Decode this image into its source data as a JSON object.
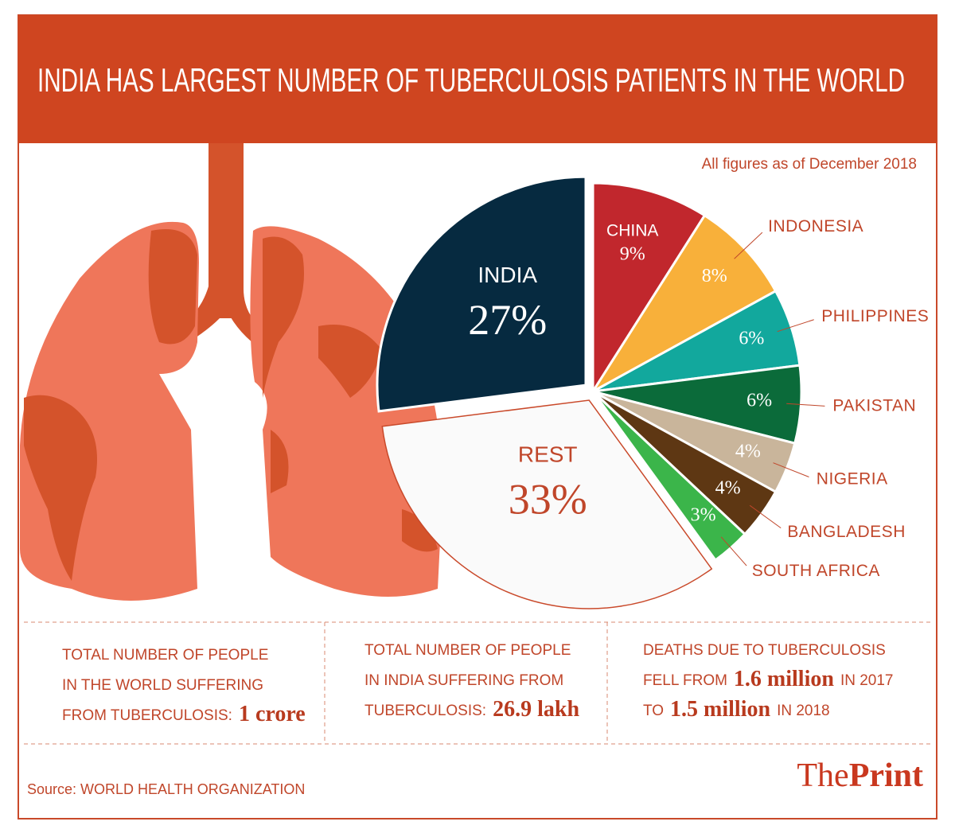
{
  "chart_data": {
    "type": "pie",
    "title": "INDIA HAS LARGEST NUMBER OF TUBERCULOSIS PATIENTS IN THE WORLD",
    "subtitle": "All figures as of December 2018",
    "categories": [
      "CHINA",
      "INDONESIA",
      "PHILIPPINES",
      "PAKISTAN",
      "NIGERIA",
      "BANGLADESH",
      "SOUTH AFRICA",
      "REST",
      "INDIA"
    ],
    "values": [
      9,
      8,
      6,
      6,
      4,
      4,
      3,
      33,
      27
    ],
    "value_labels": [
      "9%",
      "8%",
      "6%",
      "6%",
      "4%",
      "4%",
      "3%",
      "33%",
      "27%"
    ],
    "colors": [
      "#c1272d",
      "#f8b03a",
      "#12a89d",
      "#0b6b3a",
      "#c9b59b",
      "#5e3713",
      "#3bb54a",
      "#fafafa",
      "#062a40"
    ]
  },
  "stats": [
    {
      "lines": [
        [
          {
            "text": "TOTAL NUMBER OF PEOPLE",
            "highlight": false
          }
        ],
        [
          {
            "text": "IN THE WORLD SUFFERING",
            "highlight": false
          }
        ],
        [
          {
            "text": "FROM TUBERCULOSIS:",
            "highlight": false
          },
          {
            "text": "1 crore",
            "highlight": true
          }
        ]
      ]
    },
    {
      "lines": [
        [
          {
            "text": "TOTAL NUMBER OF PEOPLE",
            "highlight": false
          }
        ],
        [
          {
            "text": "IN INDIA SUFFERING FROM",
            "highlight": false
          }
        ],
        [
          {
            "text": "TUBERCULOSIS:",
            "highlight": false
          },
          {
            "text": "26.9 lakh",
            "highlight": true
          }
        ]
      ]
    },
    {
      "lines": [
        [
          {
            "text": "DEATHS DUE TO TUBERCULOSIS",
            "highlight": false
          }
        ],
        [
          {
            "text": "FELL FROM",
            "highlight": false
          },
          {
            "text": "1.6 million",
            "highlight": true
          },
          {
            "text": "IN 2017",
            "highlight": false
          }
        ],
        [
          {
            "text": "TO",
            "highlight": false
          },
          {
            "text": "1.5 million",
            "highlight": true
          },
          {
            "text": "IN 2018",
            "highlight": false
          }
        ]
      ]
    }
  ],
  "source": "Source: WORLD HEALTH ORGANIZATION",
  "brand": {
    "first": "The",
    "second": "Print"
  }
}
